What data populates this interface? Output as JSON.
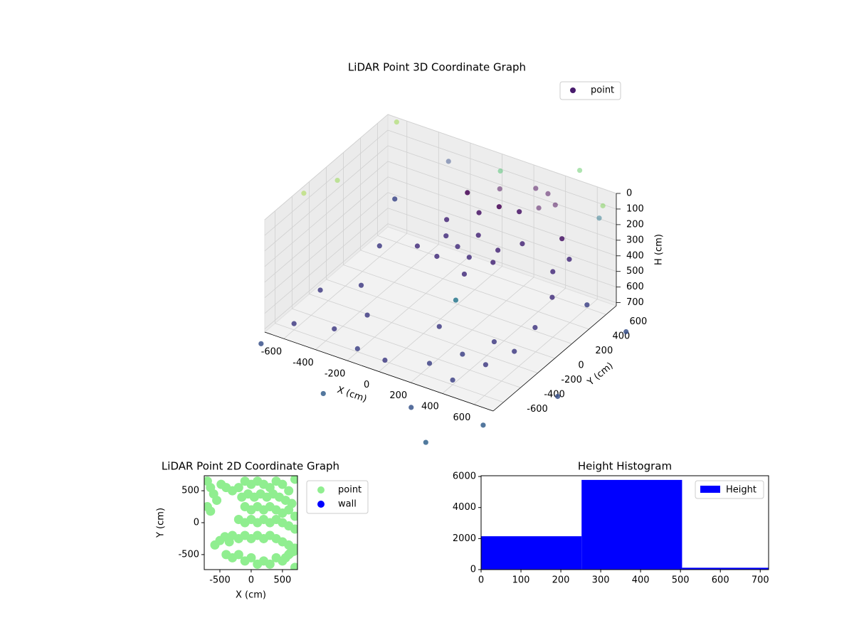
{
  "chart_data": [
    {
      "type": "scatter3d",
      "title": "LiDAR Point 3D Coordinate Graph",
      "xlabel": "X (cm)",
      "ylabel": "Y (cm)",
      "zlabel": "H (cm)",
      "xlim": [
        -720,
        720
      ],
      "ylim": [
        -720,
        720
      ],
      "zlim": [
        0,
        720
      ],
      "z_inverted": true,
      "xticks": [
        -600,
        -400,
        -200,
        0,
        200,
        400,
        600
      ],
      "yticks": [
        -600,
        -400,
        -200,
        0,
        200,
        400,
        600
      ],
      "zticks": [
        0,
        100,
        200,
        300,
        400,
        500,
        600,
        700
      ],
      "legend": "upper right",
      "series": [
        {
          "name": "point",
          "color": "#481b6d",
          "x": [
            0,
            100,
            -100,
            200,
            -200,
            50,
            150,
            -50,
            250,
            300,
            -150,
            0,
            100,
            -100,
            200,
            50,
            350,
            400,
            250,
            300,
            600,
            650,
            650,
            600,
            550,
            650,
            500,
            -600,
            -400,
            -200,
            0,
            200,
            400,
            -650,
            -500,
            300,
            500,
            -300,
            100,
            600,
            -600,
            -700,
            300,
            700,
            900,
            900,
            -200,
            500,
            -700,
            -600,
            500,
            700,
            0,
            -300,
            650,
            -650,
            -450,
            150
          ],
          "y": [
            200,
            150,
            250,
            300,
            100,
            350,
            0,
            50,
            150,
            400,
            350,
            450,
            500,
            500,
            550,
            600,
            500,
            600,
            650,
            700,
            200,
            100,
            -100,
            -250,
            400,
            300,
            -300,
            -600,
            -500,
            -600,
            -650,
            -500,
            -600,
            -200,
            0,
            -300,
            -400,
            -300,
            -200,
            600,
            400,
            -800,
            -900,
            -800,
            -300,
            500,
            -1000,
            -1100,
            -300,
            600,
            700,
            600,
            700,
            650,
            650,
            0,
            300,
            -100
          ],
          "h": [
            350,
            360,
            340,
            350,
            370,
            330,
            380,
            360,
            340,
            320,
            300,
            250,
            200,
            180,
            220,
            150,
            120,
            130,
            100,
            140,
            300,
            400,
            500,
            600,
            200,
            250,
            550,
            680,
            690,
            700,
            680,
            700,
            690,
            670,
            680,
            700,
            650,
            660,
            640,
            700,
            650,
            750,
            760,
            780,
            760,
            720,
            800,
            820,
            20,
            -50,
            -80,
            30,
            100,
            120,
            150,
            60,
            250,
            500
          ],
          "colors": [
            "#46307e",
            "#46307e",
            "#46307e",
            "#482878",
            "#46307e",
            "#482878",
            "#46307e",
            "#46307e",
            "#482878",
            "#482878",
            "#482878",
            "#471365",
            "#440154",
            "#440154",
            "#471365",
            "#440154",
            "#440154",
            "#440154",
            "#440154",
            "#440154",
            "#472d7b",
            "#46337f",
            "#443a83",
            "#433e85",
            "#471365",
            "#472d7b",
            "#433e85",
            "#433e85",
            "#433e85",
            "#414487",
            "#433e85",
            "#414487",
            "#414487",
            "#433e85",
            "#433e85",
            "#414487",
            "#433e85",
            "#433e85",
            "#433e85",
            "#414487",
            "#433e85",
            "#3b528b",
            "#39568c",
            "#355f8d",
            "#3b528b",
            "#3b528b",
            "#355f8d",
            "#33638d",
            "#a0da39",
            "#95d840",
            "#5ec962",
            "#7ad151",
            "#4ac16d",
            "#3b528b",
            "#2a788e",
            "#8fd744",
            "#3e4989",
            "#2a788e"
          ]
        }
      ]
    },
    {
      "type": "scatter",
      "title": "LiDAR Point 2D Coordinate Graph",
      "xlabel": "X (cm)",
      "ylabel": "Y (cm)",
      "xlim": [
        -750,
        740
      ],
      "ylim": [
        -735,
        735
      ],
      "xticks": [
        -500,
        0,
        500
      ],
      "yticks": [
        -500,
        0,
        500
      ],
      "legend": "outside upper right",
      "series": [
        {
          "name": "point",
          "color": "#90ee90",
          "x": [
            -700,
            -650,
            -600,
            -550,
            -700,
            -650,
            -480,
            -400,
            -300,
            -200,
            -100,
            0,
            100,
            200,
            300,
            400,
            500,
            600,
            700,
            -150,
            -50,
            50,
            150,
            250,
            350,
            450,
            550,
            650,
            -100,
            0,
            100,
            200,
            300,
            400,
            500,
            600,
            700,
            -200,
            -100,
            0,
            100,
            200,
            300,
            400,
            500,
            600,
            700,
            -300,
            -200,
            -100,
            0,
            100,
            200,
            300,
            400,
            500,
            600,
            700,
            -400,
            -300,
            -200,
            -100,
            0,
            100,
            200,
            300,
            400,
            500,
            600,
            700,
            -350,
            -420,
            -500,
            -580,
            680,
            620,
            550
          ],
          "y": [
            650,
            550,
            450,
            350,
            250,
            180,
            600,
            550,
            500,
            550,
            650,
            600,
            650,
            600,
            550,
            650,
            600,
            500,
            680,
            400,
            450,
            400,
            450,
            400,
            450,
            400,
            350,
            300,
            250,
            200,
            250,
            200,
            250,
            200,
            150,
            200,
            100,
            50,
            0,
            50,
            0,
            50,
            0,
            50,
            0,
            -50,
            -100,
            -200,
            -250,
            -200,
            -250,
            -200,
            -250,
            -200,
            -250,
            -300,
            -350,
            -400,
            -500,
            -550,
            -500,
            -600,
            -550,
            -650,
            -600,
            -650,
            -550,
            -600,
            -500,
            -700,
            -300,
            -220,
            -280,
            -350,
            -450,
            -480,
            -550
          ]
        },
        {
          "name": "wall",
          "color": "#0000ff",
          "x": [],
          "y": []
        }
      ]
    },
    {
      "type": "histogram",
      "title": "Height Histogram",
      "bins": [
        0,
        252,
        504,
        756
      ],
      "counts": [
        2150,
        5780,
        120
      ],
      "xlim": [
        0,
        721
      ],
      "ylim": [
        0,
        6050
      ],
      "xticks": [
        0,
        100,
        200,
        300,
        400,
        500,
        600,
        700
      ],
      "yticks": [
        0,
        2000,
        4000,
        6000
      ],
      "legend": "upper right",
      "series_name": "Height",
      "color": "#0000ff"
    }
  ]
}
